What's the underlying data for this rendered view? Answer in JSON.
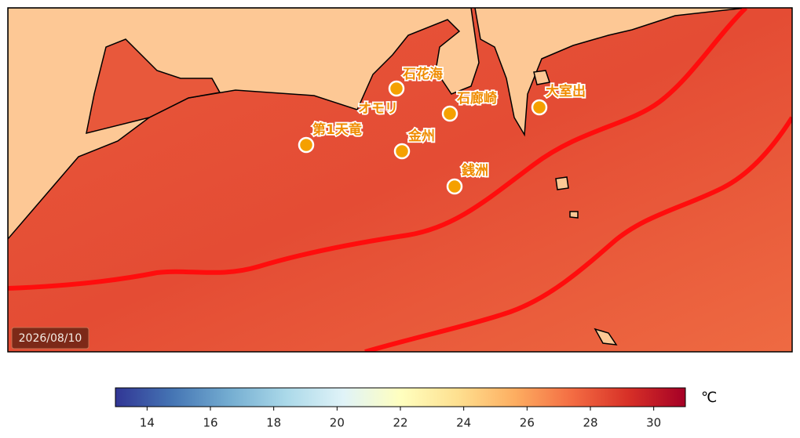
{
  "date": "2026/08/10",
  "places": [
    {
      "label": "石花海"
    },
    {
      "label": "オモリ"
    },
    {
      "label": "石廊崎"
    },
    {
      "label": "大室出"
    },
    {
      "label": "第1天竜"
    },
    {
      "label": "金州"
    },
    {
      "label": "銭洲"
    }
  ],
  "colorbar": {
    "unit": "℃",
    "range": [
      13,
      31
    ],
    "ticks": [
      14,
      16,
      18,
      20,
      22,
      24,
      26,
      28,
      30
    ]
  }
}
